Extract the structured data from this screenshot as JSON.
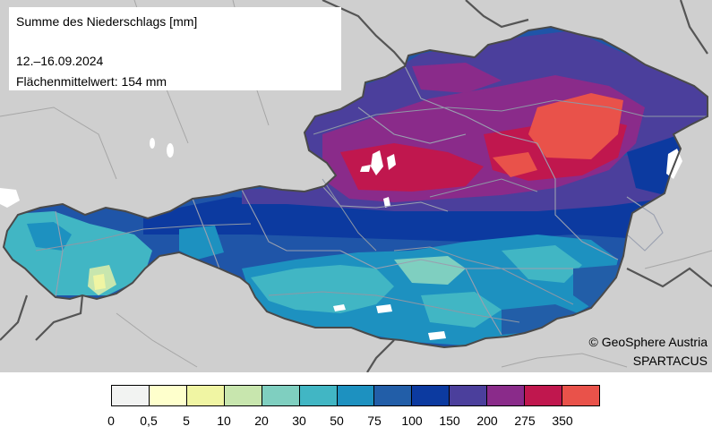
{
  "title": {
    "heading": "Summe des Niederschlags [mm]",
    "period": "12.–16.09.2024",
    "mean": "Flächenmittelwert: 154 mm"
  },
  "credits": {
    "copyright": "© GeoSphere Austria",
    "dataset": "SPARTACUS"
  },
  "legend": {
    "labels": [
      "0",
      "0,5",
      "5",
      "10",
      "20",
      "30",
      "50",
      "75",
      "100",
      "150",
      "200",
      "275",
      "350"
    ],
    "colors": [
      "#f2f3f2",
      "#feffcc",
      "#f0f5a3",
      "#c8e6ae",
      "#7fcfc0",
      "#41b6c4",
      "#1d91c0",
      "#225ea8",
      "#0c3aa0",
      "#4b3f9c",
      "#8a2b8a",
      "#c0174e",
      "#e9524a"
    ]
  },
  "colors": {
    "background": "#cfcfcf",
    "austria_border": "#555555",
    "state_borders": "#9aa0b0",
    "rivers": "#9aa0a6"
  }
}
